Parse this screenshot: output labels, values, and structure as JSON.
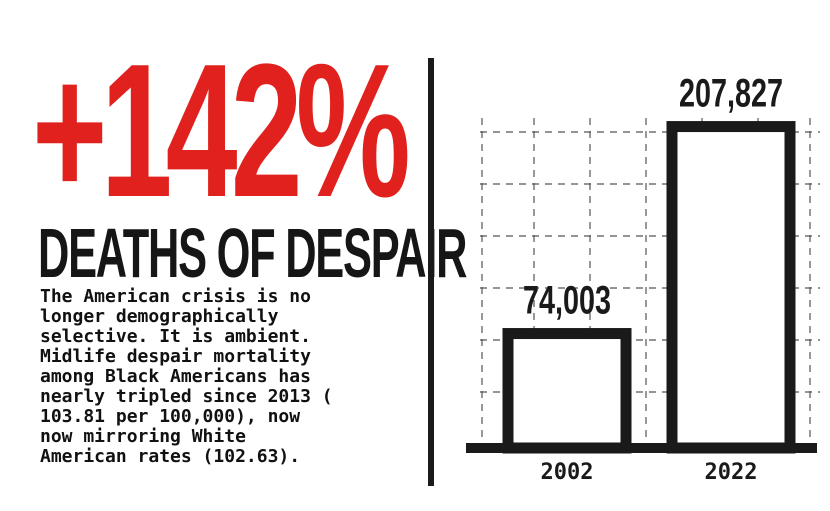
{
  "headline": {
    "stat": "+142%",
    "subtitle": "DEATHS OF DESPAIR",
    "body": "The American crisis is no\nlonger demographically\nselective. It is ambient.\nMidlife despair mortality\namong Black Americans has\nnearly tripled since 2013 (\n103.81 per 100,000), now\nnow mirroring White\nAmerican rates (102.63)."
  },
  "colors": {
    "accent": "#e0211d",
    "ink": "#1a1a1a",
    "grid": "#555555"
  },
  "chart_data": {
    "type": "bar",
    "categories": [
      "2002",
      "2022"
    ],
    "values": [
      74003,
      207827
    ],
    "data_labels": [
      "74,003",
      "207,827"
    ],
    "title": "",
    "xlabel": "",
    "ylabel": "",
    "ylim": [
      0,
      225000
    ],
    "grid": true,
    "legend": "none",
    "bar_style": "outline"
  }
}
